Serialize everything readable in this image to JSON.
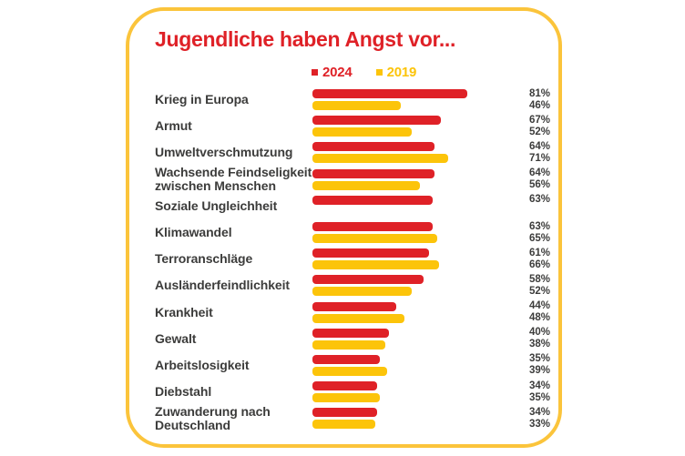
{
  "card": {
    "title": "Jugendliche haben Angst vor..."
  },
  "colors": {
    "accent_red": "#DF2127",
    "accent_yellow": "#FCC40A",
    "card_border_yellow": "#FBC43B",
    "label_gray": "#3C3C3B",
    "background": "#FFFFFF"
  },
  "legend": {
    "items": [
      {
        "label": "2024",
        "color": "#DF2127"
      },
      {
        "label": "2019",
        "color": "#FCC40A"
      }
    ]
  },
  "chart_data": {
    "type": "bar",
    "orientation": "horizontal",
    "title": "Jugendliche haben Angst vor...",
    "legend_position": "top",
    "value_suffix": "%",
    "xlim": [
      0,
      100
    ],
    "grid": false,
    "categories": [
      "Krieg in Europa",
      "Armut",
      "Umweltverschmutzung",
      "Wachsende Feindseligkeit\nzwischen Menschen",
      "Soziale Ungleichheit",
      "Klimawandel",
      "Terroranschläge",
      "Ausländerfeindlichkeit",
      "Krankheit",
      "Gewalt",
      "Arbeitslosigkeit",
      "Diebstahl",
      "Zuwanderung nach\nDeutschland"
    ],
    "series": [
      {
        "name": "2024",
        "color": "#DF2127",
        "values": [
          81,
          67,
          64,
          64,
          63,
          63,
          61,
          58,
          44,
          40,
          35,
          34,
          34
        ]
      },
      {
        "name": "2019",
        "color": "#FCC40A",
        "values": [
          46,
          52,
          71,
          56,
          null,
          65,
          66,
          52,
          48,
          38,
          39,
          35,
          33
        ]
      }
    ]
  }
}
